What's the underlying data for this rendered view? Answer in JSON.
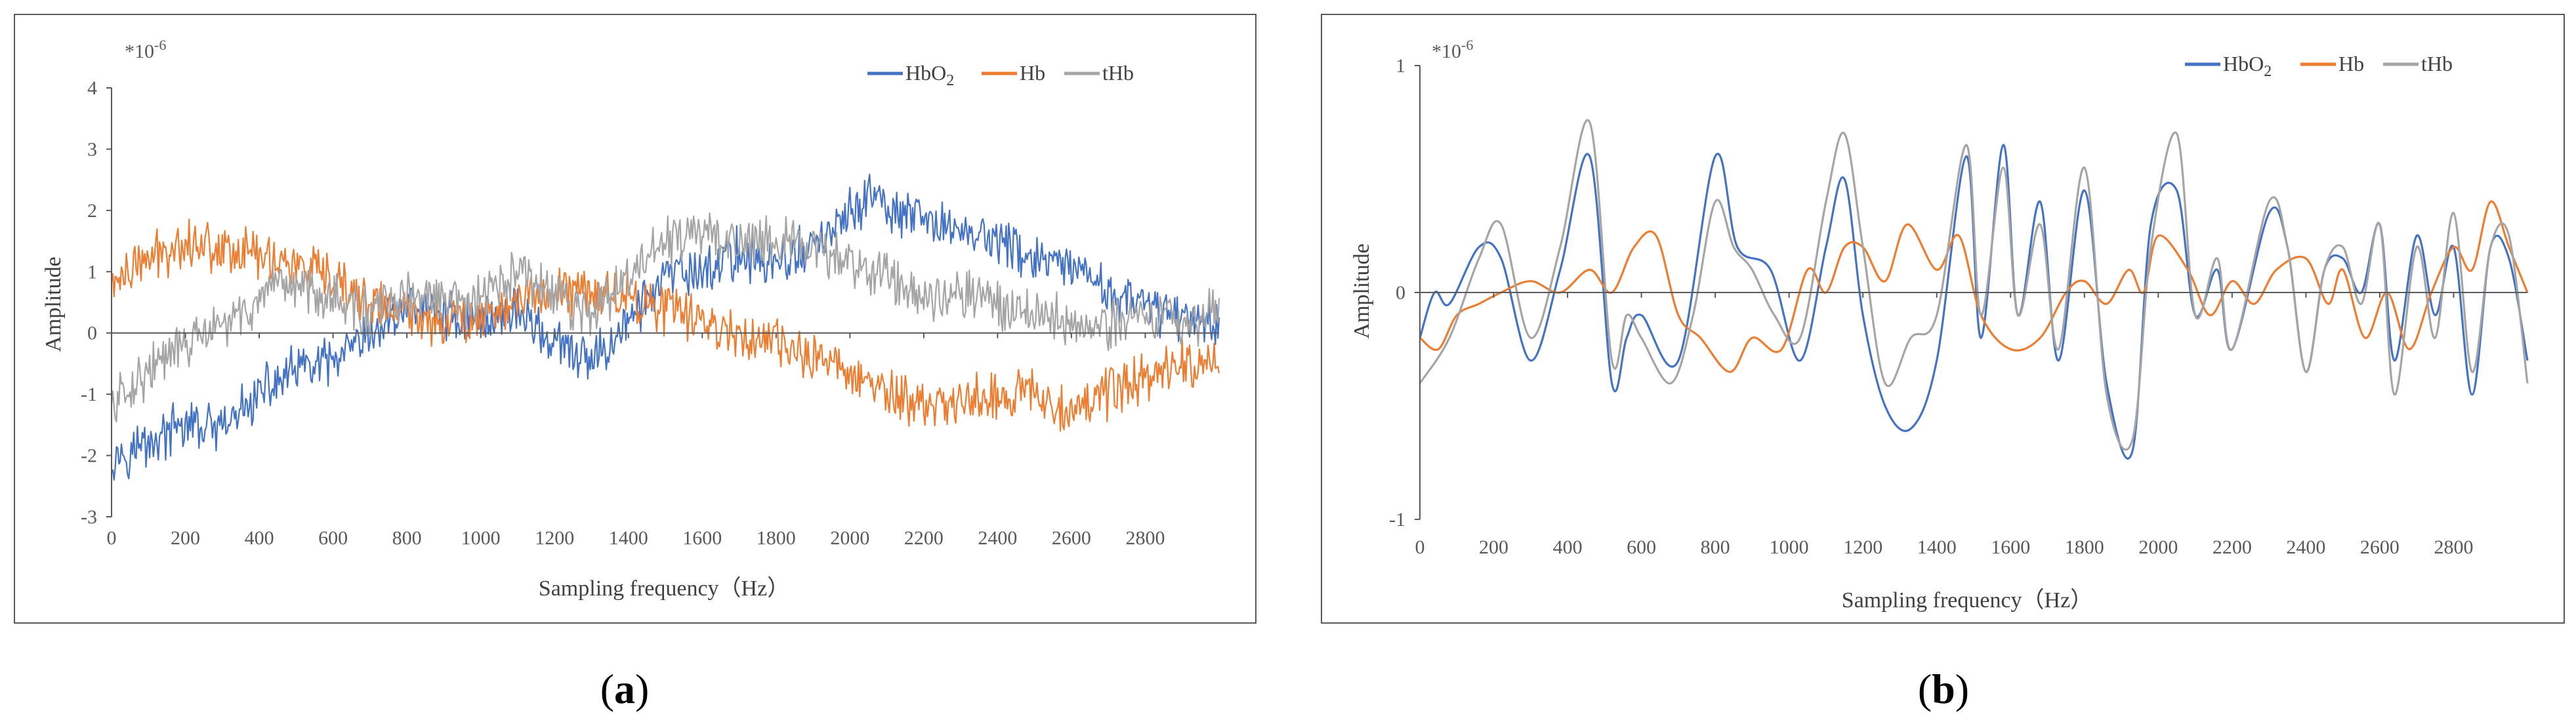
{
  "chart_data": [
    {
      "type": "line",
      "id": "a",
      "panel_label": "(a)",
      "panel_label_parts": [
        "(",
        "a",
        ")"
      ],
      "scale_note": "*10",
      "scale_exp": "-6",
      "xlabel": "Sampling frequency（Hz）",
      "ylabel": "Amplitude",
      "xlim": [
        0,
        3000
      ],
      "ylim": [
        -3,
        4
      ],
      "xticks": [
        0,
        200,
        400,
        600,
        800,
        1000,
        1200,
        1400,
        1600,
        1800,
        2000,
        2200,
        2400,
        2600,
        2800
      ],
      "yticks": [
        -3,
        -2,
        -1,
        0,
        1,
        2,
        3,
        4
      ],
      "grid": false,
      "legend_position": "top-right",
      "noise": 0.32,
      "series": [
        {
          "name": "HbO",
          "sub": "2",
          "color": "#4472C4",
          "x": [
            0,
            100,
            200,
            300,
            400,
            500,
            600,
            700,
            800,
            900,
            1000,
            1100,
            1200,
            1300,
            1400,
            1500,
            1600,
            1700,
            1800,
            1900,
            2000,
            2050,
            2100,
            2200,
            2300,
            2400,
            2500,
            2600,
            2700,
            2800,
            2900,
            3000
          ],
          "y": [
            -2.0,
            -1.8,
            -1.5,
            -1.6,
            -1.0,
            -0.6,
            -0.5,
            -0.1,
            0.5,
            0.3,
            0.2,
            0.4,
            -0.2,
            -0.5,
            0.2,
            0.9,
            1.0,
            1.3,
            1.1,
            1.4,
            1.9,
            2.3,
            2.0,
            1.8,
            1.7,
            1.5,
            1.2,
            1.0,
            0.7,
            0.4,
            0.3,
            0.2
          ]
        },
        {
          "name": "Hb",
          "sub": "",
          "color": "#ED7D31",
          "x": [
            0,
            100,
            200,
            300,
            400,
            500,
            600,
            700,
            800,
            900,
            1000,
            1100,
            1200,
            1300,
            1400,
            1500,
            1600,
            1700,
            1800,
            1900,
            2000,
            2100,
            2200,
            2300,
            2400,
            2500,
            2600,
            2700,
            2800,
            2900,
            3000
          ],
          "y": [
            0.8,
            1.2,
            1.5,
            1.4,
            1.3,
            1.1,
            0.8,
            0.5,
            0.3,
            0.2,
            0.3,
            0.5,
            0.7,
            0.7,
            0.6,
            0.4,
            0.2,
            0.0,
            -0.2,
            -0.4,
            -0.6,
            -1.0,
            -1.2,
            -1.1,
            -1.0,
            -1.0,
            -1.2,
            -1.0,
            -0.7,
            -0.5,
            -0.5
          ]
        },
        {
          "name": "tHb",
          "sub": "",
          "color": "#A5A5A5",
          "x": [
            0,
            100,
            200,
            300,
            400,
            500,
            600,
            700,
            800,
            900,
            1000,
            1100,
            1200,
            1300,
            1400,
            1500,
            1600,
            1700,
            1800,
            1900,
            2000,
            2100,
            2200,
            2300,
            2400,
            2500,
            2600,
            2700,
            2800,
            2900,
            3000
          ],
          "y": [
            -1.2,
            -0.6,
            -0.2,
            0.1,
            0.5,
            0.8,
            0.6,
            0.3,
            0.6,
            0.5,
            0.5,
            1.0,
            0.6,
            0.3,
            0.9,
            1.5,
            1.6,
            1.5,
            1.6,
            1.3,
            1.2,
            0.9,
            0.6,
            0.7,
            0.5,
            0.3,
            0.2,
            0.1,
            0.3,
            0.2,
            0.3
          ]
        }
      ]
    },
    {
      "type": "line",
      "id": "b",
      "panel_label": "(b)",
      "panel_label_parts": [
        "(",
        "b",
        ")"
      ],
      "scale_note": "*10",
      "scale_exp": "-6",
      "xlabel": "Sampling frequency（Hz）",
      "ylabel": "Amplitude",
      "xlim": [
        0,
        3000
      ],
      "ylim": [
        -1,
        1
      ],
      "xticks": [
        0,
        200,
        400,
        600,
        800,
        1000,
        1200,
        1400,
        1600,
        1800,
        2000,
        2200,
        2400,
        2600,
        2800
      ],
      "yticks": [
        -1,
        0,
        1
      ],
      "grid": false,
      "legend_position": "top-right",
      "noise": 0,
      "series": [
        {
          "name": "HbO",
          "sub": "2",
          "color": "#4472C4",
          "x": [
            0,
            40,
            80,
            160,
            220,
            300,
            380,
            460,
            520,
            560,
            600,
            700,
            800,
            860,
            950,
            1030,
            1100,
            1150,
            1200,
            1260,
            1330,
            1400,
            1480,
            1520,
            1580,
            1620,
            1680,
            1730,
            1800,
            1860,
            1930,
            1980,
            2050,
            2100,
            2160,
            2200,
            2300,
            2350,
            2400,
            2450,
            2500,
            2550,
            2600,
            2640,
            2700,
            2750,
            2800,
            2850,
            2900,
            2950,
            3000
          ],
          "y": [
            -0.2,
            0.0,
            -0.05,
            0.2,
            0.15,
            -0.3,
            0.1,
            0.6,
            -0.4,
            -0.2,
            -0.1,
            -0.3,
            0.6,
            0.2,
            0.1,
            -0.3,
            0.2,
            0.5,
            -0.1,
            -0.5,
            -0.6,
            -0.3,
            0.6,
            -0.2,
            0.65,
            -0.1,
            0.4,
            -0.3,
            0.45,
            -0.4,
            -0.7,
            0.3,
            0.45,
            -0.1,
            0.1,
            -0.25,
            0.35,
            0.2,
            -0.35,
            0.1,
            0.15,
            0.0,
            0.3,
            -0.3,
            0.25,
            -0.1,
            0.2,
            -0.45,
            0.2,
            0.15,
            -0.3
          ]
        },
        {
          "name": "Hb",
          "sub": "",
          "color": "#ED7D31",
          "x": [
            0,
            50,
            100,
            160,
            220,
            300,
            380,
            460,
            520,
            580,
            640,
            700,
            760,
            840,
            900,
            980,
            1050,
            1100,
            1150,
            1200,
            1260,
            1320,
            1400,
            1460,
            1520,
            1600,
            1680,
            1750,
            1800,
            1860,
            1920,
            1960,
            2000,
            2080,
            2140,
            2200,
            2260,
            2320,
            2400,
            2460,
            2500,
            2560,
            2620,
            2680,
            2740,
            2800,
            2850,
            2900,
            2950,
            3000
          ],
          "y": [
            -0.2,
            -0.25,
            -0.1,
            -0.05,
            0.0,
            0.05,
            0.0,
            0.1,
            0.0,
            0.2,
            0.25,
            -0.1,
            -0.2,
            -0.35,
            -0.2,
            -0.25,
            0.1,
            0.0,
            0.2,
            0.2,
            0.05,
            0.3,
            0.1,
            0.25,
            -0.1,
            -0.25,
            -0.2,
            0.0,
            0.05,
            -0.05,
            0.1,
            0.0,
            0.25,
            0.1,
            -0.1,
            0.05,
            -0.05,
            0.1,
            0.15,
            -0.05,
            0.1,
            -0.2,
            0.0,
            -0.25,
            0.0,
            0.2,
            0.1,
            0.4,
            0.2,
            0.0
          ]
        },
        {
          "name": "tHb",
          "sub": "",
          "color": "#A5A5A5",
          "x": [
            0,
            80,
            160,
            220,
            300,
            380,
            460,
            520,
            560,
            600,
            680,
            740,
            800,
            850,
            900,
            960,
            1030,
            1100,
            1150,
            1200,
            1260,
            1330,
            1400,
            1480,
            1520,
            1580,
            1620,
            1680,
            1730,
            1800,
            1860,
            1930,
            1980,
            2050,
            2100,
            2160,
            2200,
            2300,
            2350,
            2400,
            2450,
            2500,
            2550,
            2600,
            2640,
            2700,
            2750,
            2800,
            2850,
            2900,
            2950,
            3000
          ],
          "y": [
            -0.4,
            -0.2,
            0.15,
            0.3,
            -0.2,
            0.2,
            0.75,
            -0.3,
            -0.1,
            -0.2,
            -0.4,
            -0.1,
            0.4,
            0.2,
            0.1,
            -0.1,
            -0.2,
            0.4,
            0.7,
            0.2,
            -0.4,
            -0.2,
            -0.1,
            0.65,
            -0.1,
            0.55,
            -0.1,
            0.3,
            -0.25,
            0.55,
            -0.45,
            -0.65,
            0.2,
            0.7,
            -0.1,
            0.15,
            -0.25,
            0.4,
            0.2,
            -0.35,
            0.1,
            0.2,
            -0.05,
            0.3,
            -0.45,
            0.2,
            -0.2,
            0.35,
            -0.35,
            0.2,
            0.25,
            -0.4
          ]
        }
      ]
    }
  ]
}
